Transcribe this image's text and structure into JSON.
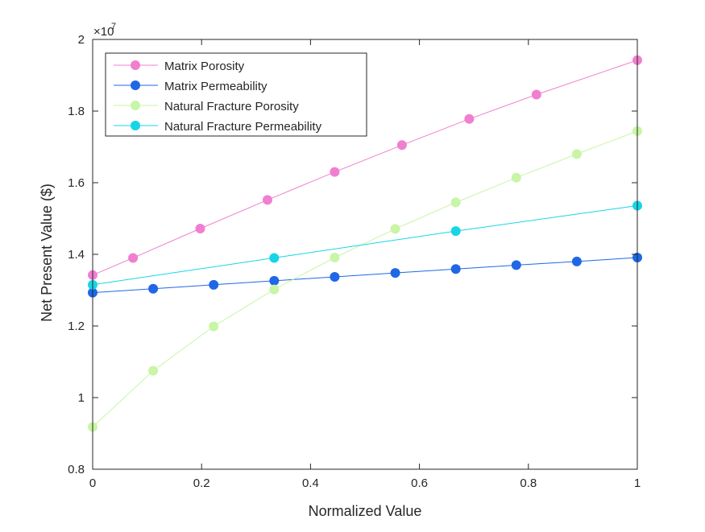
{
  "chart_data": {
    "type": "line",
    "title": "",
    "xlabel": "Normalized Value",
    "ylabel": "Net Present Value ($)",
    "exponent_label": "×10",
    "exponent_power": "7",
    "xlim": [
      0,
      1
    ],
    "ylim": [
      8000000,
      20000000
    ],
    "xticks": [
      0,
      0.2,
      0.4,
      0.6,
      0.8,
      1
    ],
    "xtick_labels": [
      "0",
      "0.2",
      "0.4",
      "0.6",
      "0.8",
      "1"
    ],
    "yticks": [
      8000000,
      10000000,
      12000000,
      14000000,
      16000000,
      18000000,
      20000000
    ],
    "ytick_labels": [
      "0.8",
      "1",
      "1.2",
      "1.4",
      "1.6",
      "1.8",
      "2"
    ],
    "grid": false,
    "legend_position": "top-left",
    "series": [
      {
        "name": "Matrix Porosity",
        "color": "#f07fd0",
        "x": [
          0,
          0.0741,
          0.1975,
          0.321,
          0.4444,
          0.5679,
          0.6914,
          0.8148,
          1
        ],
        "y": [
          13420000,
          13900000,
          14720000,
          15520000,
          16300000,
          17050000,
          17780000,
          18460000,
          19420000
        ]
      },
      {
        "name": "Matrix Permeability",
        "color": "#1f67e6",
        "x": [
          0,
          0.1111,
          0.2222,
          0.3333,
          0.4444,
          0.5556,
          0.6667,
          0.7778,
          0.8889,
          1
        ],
        "y": [
          12930000,
          13040000,
          13150000,
          13260000,
          13370000,
          13480000,
          13590000,
          13700000,
          13800000,
          13910000
        ]
      },
      {
        "name": "Natural Fracture Porosity",
        "color": "#c8f5a6",
        "x": [
          0,
          0.1111,
          0.2222,
          0.3333,
          0.4444,
          0.5556,
          0.6667,
          0.7778,
          0.8889,
          1
        ],
        "y": [
          9180000,
          10750000,
          11990000,
          13020000,
          13910000,
          14710000,
          15450000,
          16140000,
          16800000,
          17440000
        ]
      },
      {
        "name": "Natural Fracture Permeability",
        "color": "#17d5e6",
        "x": [
          0,
          0.3333,
          0.6667,
          1
        ],
        "y": [
          13150000,
          13900000,
          14650000,
          15360000
        ]
      }
    ]
  }
}
